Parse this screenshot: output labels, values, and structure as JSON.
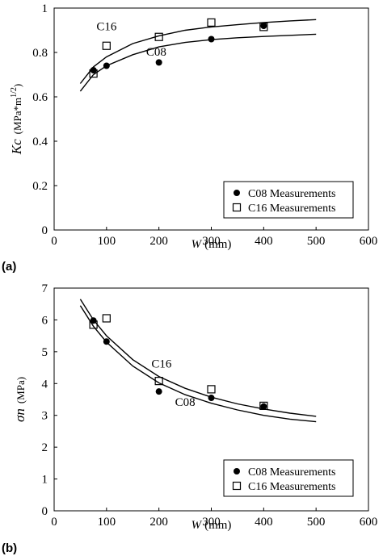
{
  "chart_data": [
    {
      "panel_label": "(a)",
      "type": "scatter",
      "xlabel_var": "W",
      "xlabel_unit": "(mm)",
      "ylabel_var": "Kc",
      "ylabel_unit": "(MPa*m",
      "ylabel_exp": "1/2",
      "ylabel_close": ")",
      "xlim": [
        0,
        600
      ],
      "ylim": [
        0,
        1
      ],
      "xticks": [
        "0",
        "100",
        "200",
        "300",
        "400",
        "500",
        "600"
      ],
      "yticks": [
        "0",
        "0.2",
        "0.4",
        "0.6",
        "0.8",
        "1"
      ],
      "grid": false,
      "legend_position": "bottom-right",
      "series": [
        {
          "name": "C08 Measurements",
          "marker": "filled-circle",
          "x": [
            75,
            100,
            200,
            300,
            400
          ],
          "y": [
            0.72,
            0.74,
            0.755,
            0.86,
            0.92
          ]
        },
        {
          "name": "C16 Measurements",
          "marker": "open-square",
          "x": [
            75,
            100,
            200,
            300,
            400
          ],
          "y": [
            0.705,
            0.83,
            0.87,
            0.935,
            0.915
          ]
        }
      ],
      "curves": [
        {
          "label": "C08",
          "x": [
            50,
            75,
            100,
            150,
            200,
            250,
            300,
            350,
            400,
            450,
            500
          ],
          "y": [
            0.625,
            0.7,
            0.74,
            0.79,
            0.825,
            0.845,
            0.858,
            0.866,
            0.872,
            0.877,
            0.882
          ]
        },
        {
          "label": "C16",
          "x": [
            50,
            75,
            100,
            150,
            200,
            250,
            300,
            350,
            400,
            450,
            500
          ],
          "y": [
            0.66,
            0.735,
            0.78,
            0.84,
            0.875,
            0.9,
            0.915,
            0.925,
            0.935,
            0.942,
            0.948
          ]
        }
      ],
      "annotations": [
        {
          "text": "C16",
          "x": 100,
          "y": 0.9
        },
        {
          "text": "C08",
          "x": 195,
          "y": 0.785
        }
      ]
    },
    {
      "panel_label": "(b)",
      "type": "scatter",
      "xlabel_var": "W",
      "xlabel_unit": "(mm)",
      "ylabel_var": "σn",
      "ylabel_unit": "(MPa)",
      "xlim": [
        0,
        600
      ],
      "ylim": [
        0,
        7
      ],
      "xticks": [
        "0",
        "100",
        "200",
        "300",
        "400",
        "500",
        "600"
      ],
      "yticks": [
        "0",
        "1",
        "2",
        "3",
        "4",
        "5",
        "6",
        "7"
      ],
      "grid": false,
      "legend_position": "bottom-right",
      "series": [
        {
          "name": "C08 Measurements",
          "marker": "filled-circle",
          "x": [
            75,
            100,
            200,
            300,
            400
          ],
          "y": [
            5.98,
            5.32,
            3.75,
            3.55,
            3.28
          ]
        },
        {
          "name": "C16 Measurements",
          "marker": "open-square",
          "x": [
            75,
            100,
            200,
            300,
            400
          ],
          "y": [
            5.85,
            6.05,
            4.08,
            3.82,
            3.3
          ]
        }
      ],
      "curves": [
        {
          "label": "C08",
          "x": [
            50,
            75,
            100,
            150,
            200,
            250,
            300,
            350,
            400,
            450,
            500
          ],
          "y": [
            6.45,
            5.8,
            5.3,
            4.55,
            4.02,
            3.65,
            3.38,
            3.17,
            3.0,
            2.88,
            2.8
          ]
        },
        {
          "label": "C16",
          "x": [
            50,
            75,
            100,
            150,
            200,
            250,
            300,
            350,
            400,
            450,
            500
          ],
          "y": [
            6.65,
            6.0,
            5.5,
            4.75,
            4.22,
            3.85,
            3.57,
            3.36,
            3.2,
            3.07,
            2.97
          ]
        }
      ],
      "annotations": [
        {
          "text": "C16",
          "x": 205,
          "y": 4.5
        },
        {
          "text": "C08",
          "x": 250,
          "y": 3.3
        }
      ]
    }
  ]
}
